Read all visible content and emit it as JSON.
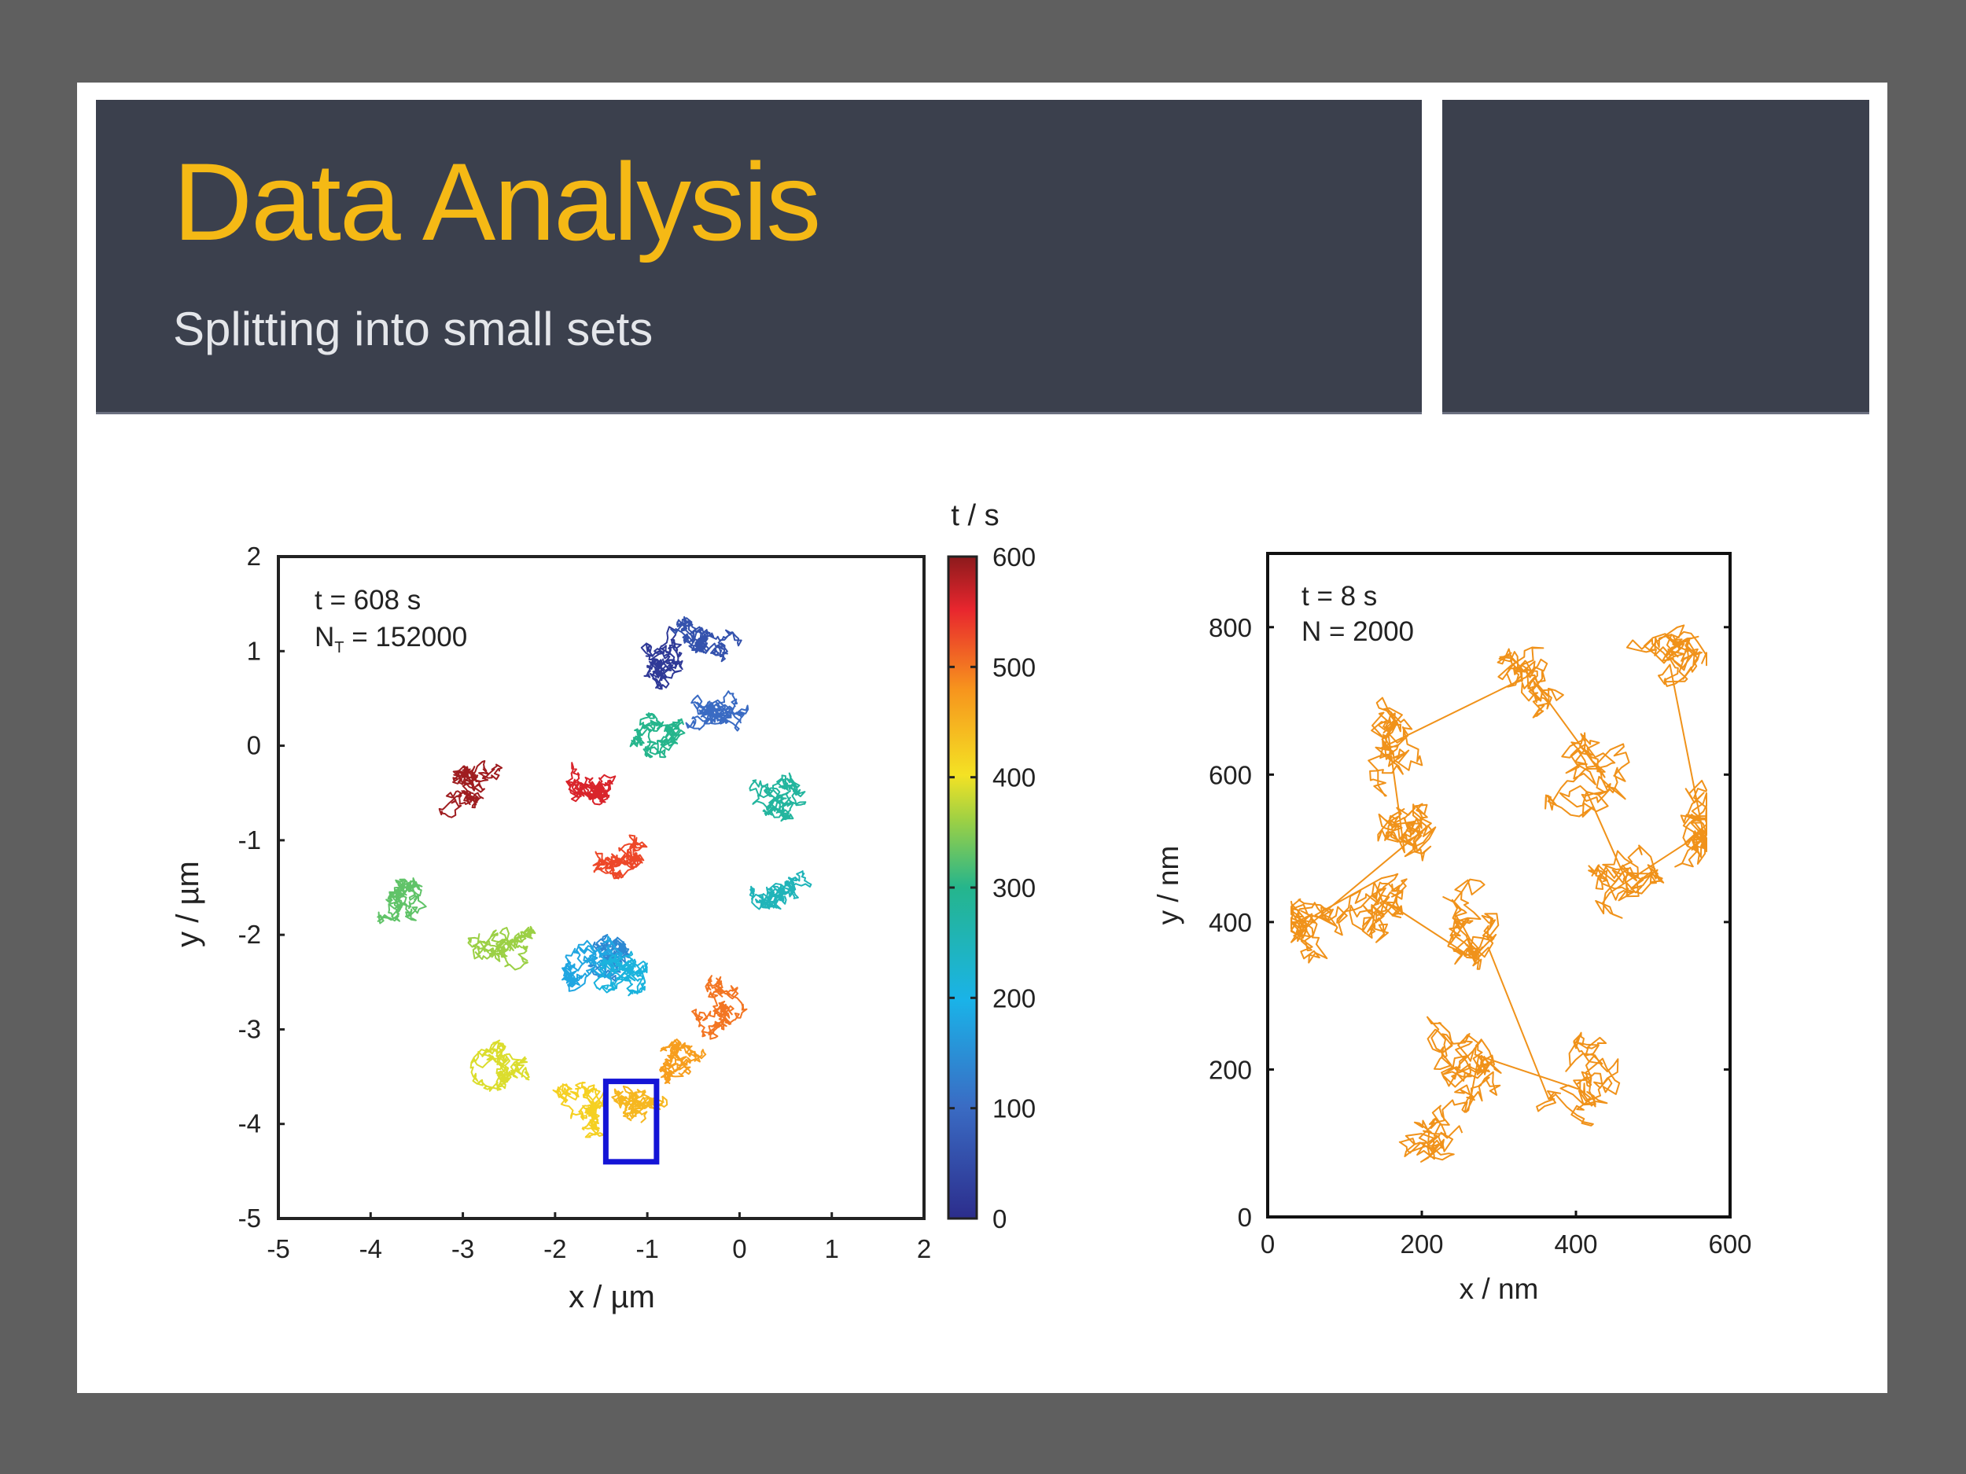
{
  "slide": {
    "title": "Data Analysis",
    "subtitle": "Splitting into small sets"
  },
  "colors": {
    "frame": "#5f5f5f",
    "header_bg": "#3b404d",
    "title": "#f5b915",
    "subtitle": "#e4e6ea",
    "highlight_box": "#1414d6",
    "right_trace": "#f0921a"
  },
  "chart_data": [
    {
      "type": "line",
      "xlabel": "x / µm",
      "ylabel": "y / µm",
      "xlim": [
        -5,
        2
      ],
      "ylim": [
        -5,
        2
      ],
      "xticks": [
        "-5",
        "-4",
        "-3",
        "-2",
        "-1",
        "0",
        "1",
        "2"
      ],
      "yticks": [
        "2",
        "1",
        "0",
        "-1",
        "-2",
        "-3",
        "-4",
        "-5"
      ],
      "annotation_line1": "t  = 608 s",
      "annotation_line2_main": "N",
      "annotation_line2_sub": "T",
      "annotation_line2_rest": " = 152000",
      "colorbar": {
        "label": "t / s",
        "range": [
          0,
          600
        ],
        "ticks": [
          "600",
          "500",
          "400",
          "300",
          "200",
          "100",
          "0"
        ]
      },
      "highlight_box": {
        "x": [
          -1.45,
          -0.9
        ],
        "y": [
          -4.4,
          -3.55
        ]
      },
      "trajectory_centers": [
        {
          "t": 20,
          "x": -0.85,
          "y": 0.9
        },
        {
          "t": 60,
          "x": -0.45,
          "y": 1.1
        },
        {
          "t": 100,
          "x": -0.3,
          "y": 0.25
        },
        {
          "t": 140,
          "x": -1.35,
          "y": -2.2
        },
        {
          "t": 180,
          "x": -1.75,
          "y": -2.25
        },
        {
          "t": 210,
          "x": -1.25,
          "y": -2.35
        },
        {
          "t": 250,
          "x": 0.45,
          "y": -1.5
        },
        {
          "t": 280,
          "x": 0.55,
          "y": -0.55
        },
        {
          "t": 300,
          "x": -0.9,
          "y": 0.05
        },
        {
          "t": 330,
          "x": -3.6,
          "y": -1.55
        },
        {
          "t": 360,
          "x": -2.5,
          "y": -2.15
        },
        {
          "t": 390,
          "x": -2.6,
          "y": -3.35
        },
        {
          "t": 420,
          "x": -1.6,
          "y": -3.9
        },
        {
          "t": 445,
          "x": -1.15,
          "y": -3.95
        },
        {
          "t": 470,
          "x": -0.75,
          "y": -3.2
        },
        {
          "t": 500,
          "x": -0.15,
          "y": -2.7
        },
        {
          "t": 530,
          "x": -1.15,
          "y": -1.2
        },
        {
          "t": 560,
          "x": -1.6,
          "y": -0.45
        },
        {
          "t": 590,
          "x": -2.9,
          "y": -0.4
        }
      ]
    },
    {
      "type": "line",
      "xlabel": "x / nm",
      "ylabel": "y / nm",
      "xlim": [
        0,
        600
      ],
      "ylim": [
        0,
        900
      ],
      "xticks": [
        "0",
        "200",
        "400",
        "600"
      ],
      "yticks": [
        "800",
        "600",
        "400",
        "200",
        "0"
      ],
      "annotation_line1": "t = 8 s",
      "annotation_line2": "N = 2000",
      "trajectory_centers": [
        {
          "x": 250,
          "y": 100
        },
        {
          "x": 270,
          "y": 230
        },
        {
          "x": 400,
          "y": 190
        },
        {
          "x": 280,
          "y": 380
        },
        {
          "x": 140,
          "y": 420
        },
        {
          "x": 60,
          "y": 400
        },
        {
          "x": 200,
          "y": 520
        },
        {
          "x": 150,
          "y": 640
        },
        {
          "x": 330,
          "y": 720
        },
        {
          "x": 420,
          "y": 590
        },
        {
          "x": 470,
          "y": 460
        },
        {
          "x": 560,
          "y": 520
        },
        {
          "x": 520,
          "y": 760
        }
      ]
    }
  ]
}
